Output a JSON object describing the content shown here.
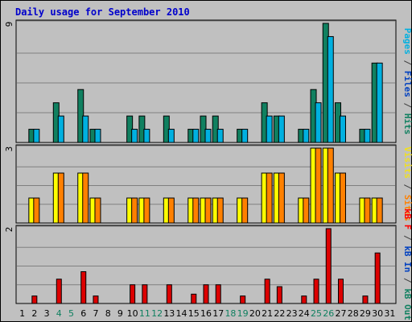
{
  "chart_data": {
    "type": "bar",
    "title": "Daily usage for September 2010",
    "categories": [
      "1",
      "2",
      "3",
      "4",
      "5",
      "6",
      "7",
      "8",
      "9",
      "10",
      "11",
      "12",
      "13",
      "14",
      "15",
      "16",
      "17",
      "18",
      "19",
      "20",
      "21",
      "22",
      "23",
      "24",
      "25",
      "26",
      "27",
      "28",
      "29",
      "30",
      "31"
    ],
    "weekend_days": [
      "4",
      "5",
      "11",
      "12",
      "18",
      "19",
      "25",
      "26"
    ],
    "panels": [
      {
        "axis_max_label": "9",
        "ymax": 9,
        "right_label": [
          {
            "text": "Pages",
            "color": "#00b0e0"
          },
          {
            "text": " / ",
            "color": "#404040"
          },
          {
            "text": "Files",
            "color": "#0040c0"
          },
          {
            "text": " / ",
            "color": "#404040"
          },
          {
            "text": "Hits",
            "color": "#108060"
          }
        ],
        "series": [
          {
            "name": "Hits",
            "color": "#108060",
            "values": [
              0,
              1,
              0,
              3,
              0,
              4,
              1,
              0,
              0,
              2,
              2,
              0,
              2,
              0,
              1,
              2,
              2,
              0,
              1,
              0,
              3,
              2,
              0,
              1,
              4,
              9,
              3,
              0,
              1,
              6,
              0
            ]
          },
          {
            "name": "Pages",
            "color": "#00b0e0",
            "values": [
              0,
              1,
              0,
              2,
              0,
              2,
              1,
              0,
              0,
              1,
              1,
              0,
              1,
              0,
              1,
              1,
              1,
              0,
              1,
              0,
              2,
              2,
              0,
              1,
              3,
              8,
              2,
              0,
              1,
              6,
              0
            ]
          }
        ]
      },
      {
        "axis_max_label": "3",
        "ymax": 3,
        "right_label": [
          {
            "text": "Visits",
            "color": "#f0e020"
          },
          {
            "text": " / ",
            "color": "#404040"
          },
          {
            "text": "Sites",
            "color": "#ff8000"
          }
        ],
        "series": [
          {
            "name": "Visits",
            "color": "#ffff00",
            "values": [
              0,
              1,
              0,
              2,
              0,
              2,
              1,
              0,
              0,
              1,
              1,
              0,
              1,
              0,
              1,
              1,
              1,
              0,
              1,
              0,
              2,
              2,
              0,
              1,
              3,
              3,
              2,
              0,
              1,
              1,
              0
            ]
          },
          {
            "name": "Sites",
            "color": "#ff8000",
            "values": [
              0,
              1,
              0,
              2,
              0,
              2,
              1,
              0,
              0,
              1,
              1,
              0,
              1,
              0,
              1,
              1,
              1,
              0,
              1,
              0,
              2,
              2,
              0,
              1,
              3,
              3,
              2,
              0,
              1,
              1,
              0
            ]
          }
        ]
      },
      {
        "axis_max_label": "2",
        "ymax": 2,
        "right_label": [
          {
            "text": "kB F",
            "color": "#ff0000"
          },
          {
            "text": " / ",
            "color": "#404040"
          },
          {
            "text": "kB In",
            "color": "#0040c0"
          },
          {
            "text": " / ",
            "color": "#404040"
          },
          {
            "text": "kB Out",
            "color": "#108060"
          }
        ],
        "series": [
          {
            "name": "kB F",
            "color": "#dd0000",
            "values": [
              0,
              0.2,
              0,
              0.65,
              0,
              0.85,
              0.2,
              0,
              0,
              0.5,
              0.5,
              0,
              0.5,
              0,
              0.25,
              0.5,
              0.5,
              0,
              0.2,
              0,
              0.65,
              0.45,
              0,
              0.2,
              0.65,
              2,
              0.65,
              0,
              0.2,
              1.35,
              0
            ]
          }
        ]
      }
    ],
    "colors": {
      "background": "#c0c0c0",
      "title": "#0000cc",
      "weekday_label": "#000000",
      "weekend_label": "#108060"
    }
  }
}
